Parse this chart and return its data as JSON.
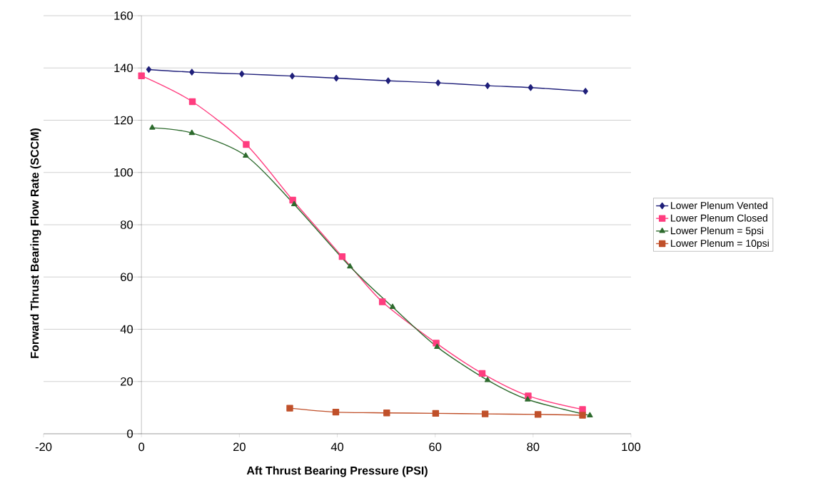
{
  "chart_data": {
    "type": "line",
    "xlabel": "Aft Thrust Bearing Pressure (PSI)",
    "ylabel": "Forward Thrust Bearing Flow Rate (SCCM)",
    "xlim": [
      -20,
      100
    ],
    "xticks": [
      -20,
      0,
      20,
      40,
      60,
      80,
      100
    ],
    "ylim": [
      0,
      160
    ],
    "yticks": [
      0,
      20,
      40,
      60,
      80,
      100,
      120,
      140,
      160
    ],
    "grid": "y",
    "legend": "right",
    "series": [
      {
        "name": "Lower Plenum Vented",
        "color": "#1f1f7a",
        "marker": "diamond",
        "x": [
          1.5,
          10.3,
          20.5,
          30.8,
          39.8,
          50.4,
          60.6,
          70.7,
          79.5,
          90.7
        ],
        "values": [
          139.4,
          138.4,
          137.7,
          136.9,
          136.1,
          135.1,
          134.3,
          133.2,
          132.5,
          131.1
        ]
      },
      {
        "name": "Lower Plenum Closed",
        "color": "#ff3d7f",
        "marker": "square",
        "x": [
          0,
          10.4,
          21.4,
          30.9,
          41.0,
          49.2,
          60.2,
          69.6,
          79.0,
          90.1
        ],
        "values": [
          137,
          127.1,
          110.7,
          89.4,
          67.8,
          50.5,
          34.7,
          23.1,
          14.5,
          9.3
        ]
      },
      {
        "name": "Lower Plenum = 5psi",
        "color": "#2e6b2e",
        "marker": "triangle",
        "x": [
          2.2,
          10.3,
          21.3,
          31.2,
          42.6,
          51.3,
          60.4,
          70.7,
          78.9,
          91.6
        ],
        "values": [
          117.1,
          115.1,
          106.4,
          87.8,
          64.0,
          48.5,
          33.2,
          20.5,
          13.1,
          7.0
        ]
      },
      {
        "name": "Lower Plenum = 10psi",
        "color": "#c0502a",
        "marker": "square",
        "x": [
          30.3,
          39.7,
          50.1,
          60.1,
          70.2,
          81.0,
          90.1
        ],
        "values": [
          9.8,
          8.3,
          8.0,
          7.8,
          7.6,
          7.4,
          7.1
        ]
      }
    ]
  }
}
